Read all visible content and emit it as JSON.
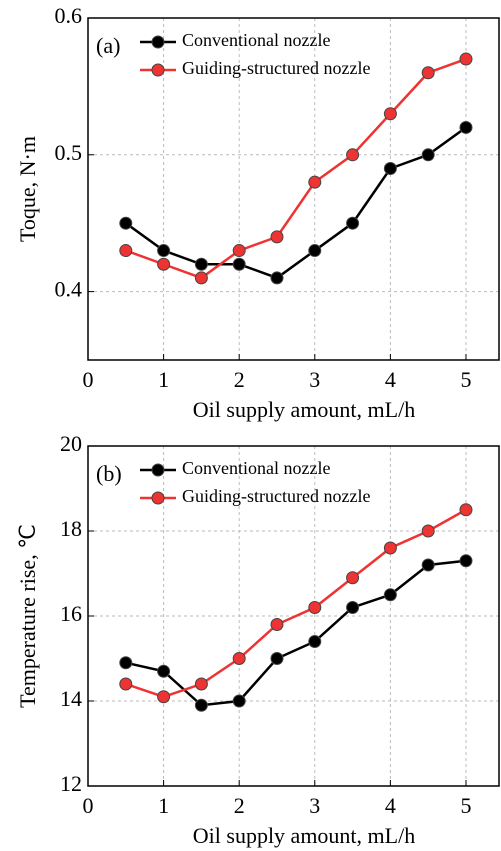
{
  "chart_data": [
    {
      "type": "line",
      "label": "(a)",
      "xlabel": "Oil supply amount, mL/h",
      "ylabel": "Toque, N·m",
      "x": [
        0.5,
        1,
        1.5,
        2,
        2.5,
        3,
        3.5,
        4,
        4.5,
        5
      ],
      "series": [
        {
          "name": "Conventional nozzle",
          "color": "#000000",
          "values": [
            0.45,
            0.43,
            0.42,
            0.42,
            0.41,
            0.43,
            0.45,
            0.49,
            0.5,
            0.52
          ]
        },
        {
          "name": "Guiding-structured nozzle",
          "color": "#ee3333",
          "values": [
            0.43,
            0.42,
            0.41,
            0.43,
            0.44,
            0.48,
            0.5,
            0.53,
            0.56,
            0.57
          ]
        }
      ],
      "xlim": [
        0,
        5.45
      ],
      "xticks": [
        0,
        1,
        2,
        3,
        4,
        5
      ],
      "ylim": [
        0.35,
        0.6
      ],
      "yticks": [
        0.4,
        0.5,
        0.6
      ],
      "grid": true
    },
    {
      "type": "line",
      "label": "(b)",
      "xlabel": "Oil supply amount, mL/h",
      "ylabel": "Temperature rise,  ℃",
      "x": [
        0.5,
        1,
        1.5,
        2,
        2.5,
        3,
        3.5,
        4,
        4.5,
        5
      ],
      "series": [
        {
          "name": "Conventional nozzle",
          "color": "#000000",
          "values": [
            14.9,
            14.7,
            13.9,
            14.0,
            15.0,
            15.4,
            16.2,
            16.5,
            17.2,
            17.3
          ]
        },
        {
          "name": "Guiding-structured nozzle",
          "color": "#ee3333",
          "values": [
            14.4,
            14.1,
            14.4,
            15.0,
            15.8,
            16.2,
            16.9,
            17.6,
            18.0,
            18.5
          ]
        }
      ],
      "xlim": [
        0,
        5.45
      ],
      "xticks": [
        0,
        1,
        2,
        3,
        4,
        5
      ],
      "ylim": [
        12,
        20
      ],
      "yticks": [
        12,
        14,
        16,
        18,
        20
      ],
      "grid": true
    }
  ]
}
